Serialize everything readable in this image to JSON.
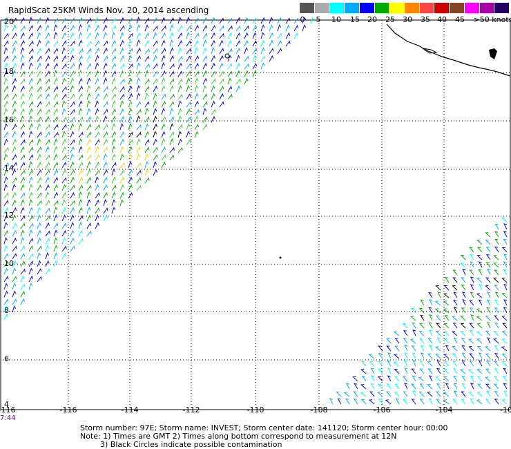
{
  "title": "RapidScat 25KM Winds Nov. 20, 2014 ascending",
  "legend": {
    "labels": [
      "0",
      "5",
      "10",
      "15",
      "20",
      "25",
      "30",
      "35",
      "40",
      "45",
      ">50 knots"
    ],
    "colors": [
      "#555555",
      "#aaaaaa",
      "#00ffff",
      "#00aaff",
      "#0000ff",
      "#00aa00",
      "#ffff00",
      "#ff8800",
      "#ff4444",
      "#cc0000",
      "#884422",
      "#ff00ff",
      "#aa00aa",
      "#220066"
    ]
  },
  "map": {
    "lat_labels": [
      "20",
      "18",
      "16",
      "14",
      "12",
      "10",
      "8",
      "6",
      "4"
    ],
    "lon_labels": [
      "-116",
      "-116",
      "-114",
      "-112",
      "-110",
      "-108",
      "-106",
      "-104",
      "-10"
    ],
    "time_label": "7:44"
  },
  "notes": {
    "line1": "Storm number: 97E;  Storm name: INVEST;  Storm center date: 141120;  Storm center hour: 00:00",
    "line2": "Note: 1) Times are GMT  2) Times along bottom correspond to measurement at 12N",
    "line3": "3) Black Circles indicate possible contamination"
  }
}
